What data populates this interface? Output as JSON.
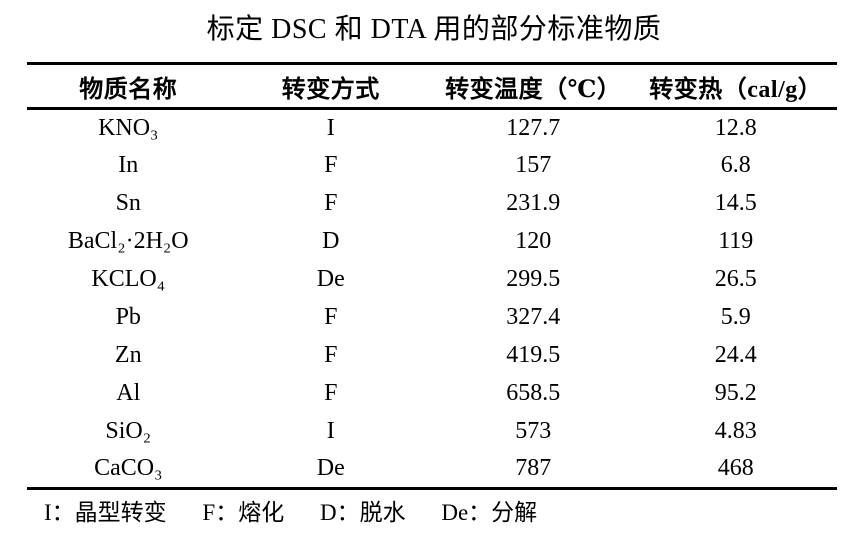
{
  "page": {
    "title": "标定 DSC 和 DTA 用的部分标准物质",
    "background_color": "#ffffff",
    "text_color": "#000000",
    "rule_color": "#000000"
  },
  "table": {
    "headers": [
      "物质名称",
      "转变方式",
      "转变温度（℃）",
      "转变热（cal/g）"
    ],
    "rows": [
      [
        "KNO₃",
        "I",
        "127.7",
        "12.8"
      ],
      [
        "In",
        "F",
        "157",
        "6.8"
      ],
      [
        "Sn",
        "F",
        "231.9",
        "14.5"
      ],
      [
        "BaCl₂·2H₂O",
        "D",
        "120",
        "119"
      ],
      [
        "KCLO₄",
        "De",
        "299.5",
        "26.5"
      ],
      [
        "Pb",
        "F",
        "327.4",
        "5.9"
      ],
      [
        "Zn",
        "F",
        "419.5",
        "24.4"
      ],
      [
        "Al",
        "F",
        "658.5",
        "95.2"
      ],
      [
        "SiO₂",
        "I",
        "573",
        "4.83"
      ],
      [
        "CaCO₃",
        "De",
        "787",
        "468"
      ]
    ]
  },
  "footnote": {
    "items": [
      "I：晶型转变",
      "F：熔化",
      "D：脱水",
      "De：分解"
    ]
  }
}
